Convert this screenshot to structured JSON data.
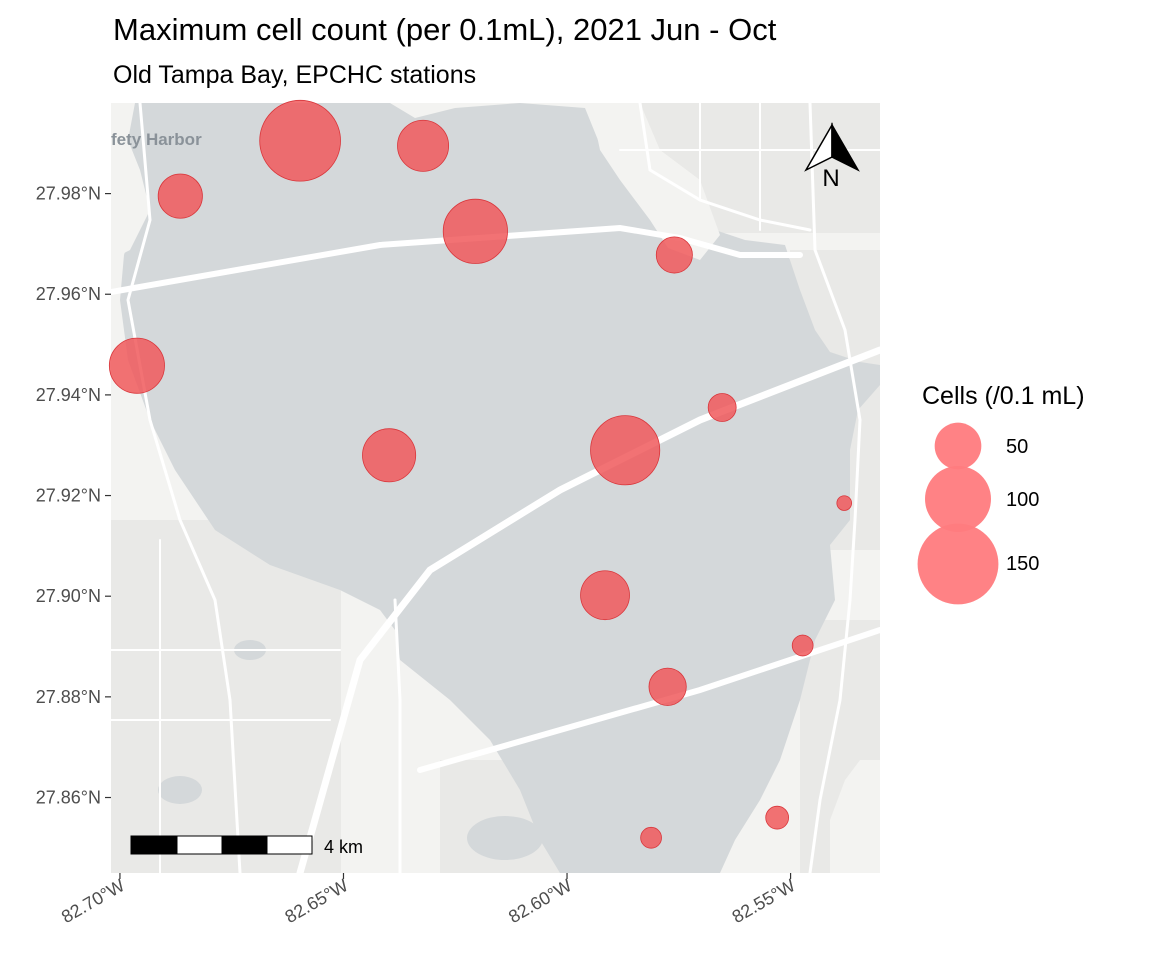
{
  "title": "Maximum cell count (per 0.1mL), 2021 Jun - Oct",
  "subtitle": "Old Tampa Bay, EPCHC stations",
  "place_labels": [
    "fety Harbor"
  ],
  "north_arrow": {
    "icon": "north-arrow-icon",
    "label": "N"
  },
  "scale_bar": {
    "label": "4 km"
  },
  "legend": {
    "title": "Cells (/0.1 mL)",
    "items": [
      {
        "label": "50",
        "value": 50
      },
      {
        "label": "100",
        "value": 100
      },
      {
        "label": "150",
        "value": 150
      }
    ]
  },
  "colors": {
    "point_fill": "#f0595c",
    "point_stroke": "#d9363b",
    "water": "#d4d8da",
    "land": "#f3f3f1",
    "road": "#ffffff"
  },
  "axes": {
    "x": {
      "ticks": [
        "82.70°W",
        "82.65°W",
        "82.60°W",
        "82.55°W"
      ],
      "values": [
        -82.7,
        -82.65,
        -82.6,
        -82.55
      ],
      "range": [
        -82.702,
        -82.53
      ]
    },
    "y": {
      "ticks": [
        "27.86°N",
        "27.88°N",
        "27.90°N",
        "27.92°N",
        "27.94°N",
        "27.96°N",
        "27.98°N"
      ],
      "values": [
        27.86,
        27.88,
        27.9,
        27.92,
        27.94,
        27.96,
        27.98
      ],
      "range": [
        27.845,
        27.998
      ]
    }
  },
  "stations": [
    {
      "lon": -82.6597,
      "lat": 27.9905,
      "cells": 150
    },
    {
      "lon": -82.6322,
      "lat": 27.9895,
      "cells": 60
    },
    {
      "lon": -82.6865,
      "lat": 27.9795,
      "cells": 45
    },
    {
      "lon": -82.6205,
      "lat": 27.9725,
      "cells": 95
    },
    {
      "lon": -82.576,
      "lat": 27.9678,
      "cells": 30
    },
    {
      "lon": -82.6962,
      "lat": 27.9458,
      "cells": 70
    },
    {
      "lon": -82.6398,
      "lat": 27.928,
      "cells": 65
    },
    {
      "lon": -82.587,
      "lat": 27.929,
      "cells": 110
    },
    {
      "lon": -82.5653,
      "lat": 27.9375,
      "cells": 18
    },
    {
      "lon": -82.5915,
      "lat": 27.9002,
      "cells": 55
    },
    {
      "lon": -82.5775,
      "lat": 27.882,
      "cells": 32
    },
    {
      "lon": -82.5473,
      "lat": 27.8902,
      "cells": 10
    },
    {
      "lon": -82.538,
      "lat": 27.9185,
      "cells": 5
    },
    {
      "lon": -82.5812,
      "lat": 27.852,
      "cells": 10
    },
    {
      "lon": -82.553,
      "lat": 27.856,
      "cells": 12
    }
  ]
}
